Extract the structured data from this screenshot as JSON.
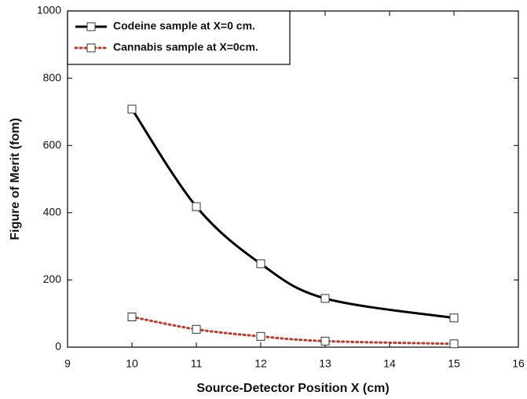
{
  "chart_data": {
    "type": "line",
    "xlabel": "Source-Detector Position X (cm)",
    "ylabel": "Figure of Merit (fom)",
    "x": [
      10,
      11,
      12,
      13,
      15
    ],
    "series": [
      {
        "name": "Codeine sample at X=0 cm.",
        "color": "#000000",
        "values": [
          708,
          418,
          248,
          145,
          87
        ]
      },
      {
        "name": "Cannabis sample at X=0cm.",
        "color": "#c0392b",
        "values": [
          90,
          53,
          32,
          18,
          10
        ]
      }
    ],
    "xlim": [
      9,
      16
    ],
    "xticks": [
      9,
      10,
      11,
      12,
      13,
      14,
      15,
      16
    ],
    "ylim": [
      0,
      1000
    ],
    "yticks": [
      0,
      200,
      400,
      600,
      800,
      1000
    ],
    "legend": "upper-left",
    "grid": false
  }
}
